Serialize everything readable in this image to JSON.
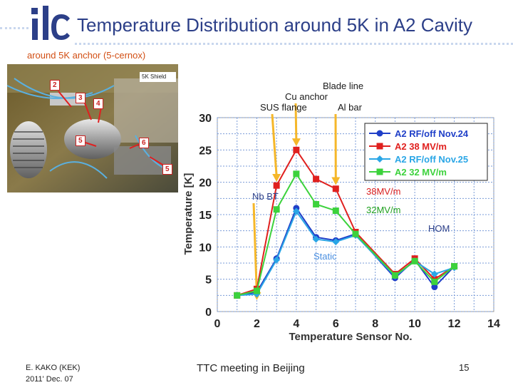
{
  "slide": {
    "title": "Temperature Distribution around 5K in A2 Cavity",
    "subtitle": "around 5K anchor (5-cernox)",
    "photo": {
      "shield_label": "5K Shield",
      "sensor_labels": [
        "2",
        "3",
        "4",
        "5",
        "6",
        "5"
      ]
    },
    "footer": {
      "author": "E. KAKO (KEK)",
      "date": "2011' Dec. 07",
      "event": "TTC meeting in Beijing",
      "page": "15"
    }
  },
  "chart_data": {
    "type": "line",
    "xlabel": "Temperature Sensor No.",
    "ylabel": "Temperature  [K]",
    "xlim": [
      0,
      14
    ],
    "ylim": [
      0,
      30
    ],
    "xticks": [
      0,
      2,
      4,
      6,
      8,
      10,
      12,
      14
    ],
    "yticks": [
      0,
      5,
      10,
      15,
      20,
      25,
      30
    ],
    "grid": true,
    "legend_position": "top-right",
    "series": [
      {
        "name": "A2 RF/off Nov.24",
        "color": "#1f3fc8",
        "marker": "circle",
        "x": [
          1,
          2,
          3,
          4,
          5,
          6,
          7,
          9,
          10,
          11,
          12
        ],
        "y": [
          2.5,
          3.0,
          8.2,
          16.0,
          11.5,
          11.0,
          12.0,
          5.2,
          8.0,
          3.8,
          7.0
        ]
      },
      {
        "name": "A2 38 MV/m",
        "color": "#e0201e",
        "marker": "square",
        "x": [
          1,
          2,
          3,
          4,
          5,
          6,
          7,
          9,
          10,
          11,
          12
        ],
        "y": [
          2.5,
          3.5,
          19.5,
          25.0,
          20.5,
          19.0,
          12.3,
          5.8,
          8.2,
          5.0,
          7.0
        ]
      },
      {
        "name": "A2 RF/off Nov.25",
        "color": "#2aa6e6",
        "marker": "diamond",
        "x": [
          1,
          2,
          3,
          4,
          5,
          6,
          7,
          9,
          10,
          11,
          12
        ],
        "y": [
          2.5,
          2.7,
          8.0,
          15.5,
          11.2,
          10.8,
          11.8,
          5.5,
          7.8,
          5.8,
          6.8
        ]
      },
      {
        "name": "A2 32 MV/m",
        "color": "#3cd23c",
        "marker": "square",
        "x": [
          1,
          2,
          3,
          4,
          5,
          6,
          7,
          9,
          10,
          11,
          12
        ],
        "y": [
          2.5,
          3.2,
          15.8,
          21.3,
          16.6,
          15.6,
          12.0,
          5.6,
          7.8,
          4.6,
          7.0
        ]
      }
    ],
    "annotations": [
      {
        "text": "Blade line",
        "color": "#1a1a1a"
      },
      {
        "text": "Cu anchor",
        "color": "#1a1a1a"
      },
      {
        "text": "SUS flange",
        "color": "#1a1a1a"
      },
      {
        "text": "Al bar",
        "color": "#1a1a1a"
      },
      {
        "text": "Nb BT",
        "color": "#2c3f88"
      },
      {
        "text": "38MV/m",
        "color": "#d91e1e"
      },
      {
        "text": "32MV/m",
        "color": "#1fa01f"
      },
      {
        "text": "HOM",
        "color": "#2c3f88"
      },
      {
        "text": "Static",
        "color": "#4a8fe0"
      }
    ],
    "arrows": [
      {
        "sensor": 3,
        "from_annotation": "SUS flange"
      },
      {
        "sensor": 4,
        "from_annotation": "Cu anchor"
      },
      {
        "sensor": 6,
        "from_annotation": "Al bar"
      },
      {
        "sensor": 2,
        "from_annotation": "Nb BT"
      }
    ]
  }
}
